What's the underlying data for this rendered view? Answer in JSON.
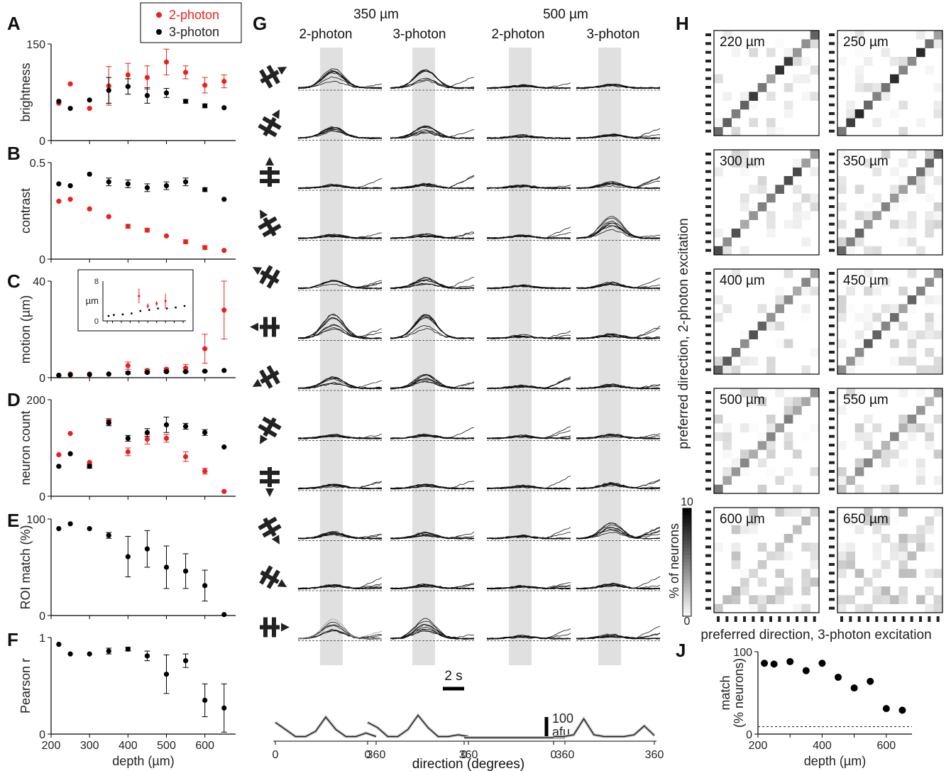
{
  "figure": {
    "panel_letters": [
      "A",
      "B",
      "C",
      "D",
      "E",
      "F",
      "G",
      "H",
      "J"
    ],
    "legend": [
      {
        "label": "2-photon",
        "color": "#e8231f"
      },
      {
        "label": "3-photon",
        "color": "#000000"
      }
    ],
    "colors": {
      "two_photon": "#e8231f",
      "three_photon": "#000000",
      "shade": "#e0e0e0"
    },
    "G": {
      "depth_headers": [
        "350 µm",
        "500 µm"
      ],
      "column_headers": [
        "2-photon",
        "3-photon",
        "2-photon",
        "3-photon"
      ],
      "time_scale_label": "2 s",
      "amp_scale_label": [
        "100",
        "afu"
      ],
      "tuning_xticks": [
        "0",
        "360"
      ],
      "tuning_xlabel": "direction (degrees)"
    },
    "H": {
      "depths": [
        "220 µm",
        "250 µm",
        "300 µm",
        "350 µm",
        "400 µm",
        "450 µm",
        "500 µm",
        "550 µm",
        "600 µm",
        "650 µm"
      ],
      "ylabel": "preferred direction, 2-photon excitation",
      "xlabel": "preferred direction, 3-photon excitation",
      "colorbar_label": "% of neurons",
      "colorbar_ticks": [
        "10",
        "0"
      ]
    }
  },
  "chart_data": [
    {
      "panel": "A",
      "type": "scatter",
      "xlabel": "",
      "ylabel": "brightness",
      "ylim": [
        0,
        150
      ],
      "yticks": [
        "0",
        "150"
      ],
      "x": [
        220,
        250,
        300,
        350,
        400,
        450,
        500,
        550,
        600,
        650
      ],
      "series": [
        {
          "name": "2-photon",
          "color": "#e8231f",
          "values": [
            58,
            88,
            50,
            85,
            102,
            98,
            122,
            106,
            86,
            92
          ],
          "err": [
            0,
            0,
            0,
            30,
            18,
            18,
            20,
            10,
            12,
            10
          ]
        },
        {
          "name": "3-photon",
          "color": "#000000",
          "values": [
            61,
            50,
            63,
            78,
            84,
            70,
            74,
            61,
            54,
            51
          ],
          "err": [
            0,
            0,
            0,
            20,
            12,
            12,
            7,
            3,
            3,
            0
          ]
        }
      ]
    },
    {
      "panel": "B",
      "type": "scatter",
      "xlabel": "",
      "ylabel": "contrast",
      "ylim": [
        0,
        0.5
      ],
      "yticks": [
        "0",
        "0.5"
      ],
      "x": [
        220,
        250,
        300,
        350,
        400,
        450,
        500,
        550,
        600,
        650
      ],
      "series": [
        {
          "name": "2-photon",
          "color": "#e8231f",
          "values": [
            0.3,
            0.31,
            0.26,
            0.22,
            0.17,
            0.15,
            0.12,
            0.09,
            0.06,
            0.045
          ],
          "err": [
            0,
            0,
            0,
            0,
            0.01,
            0.01,
            0,
            0.01,
            0.01,
            0
          ]
        },
        {
          "name": "3-photon",
          "color": "#000000",
          "values": [
            0.39,
            0.38,
            0.44,
            0.4,
            0.39,
            0.37,
            0.38,
            0.4,
            0.36,
            0.31
          ],
          "err": [
            0,
            0,
            0,
            0.02,
            0.02,
            0.02,
            0.02,
            0.02,
            0.01,
            0
          ]
        }
      ]
    },
    {
      "panel": "C",
      "type": "scatter",
      "xlabel": "",
      "ylabel": "motion (µm)",
      "ylim": [
        0,
        40
      ],
      "yticks": [
        "0",
        "40"
      ],
      "x": [
        220,
        250,
        300,
        350,
        400,
        450,
        500,
        550,
        600,
        650
      ],
      "series": [
        {
          "name": "2-photon",
          "color": "#e8231f",
          "values": [
            1,
            1.5,
            1.5,
            1.5,
            5,
            3,
            3.5,
            4,
            12,
            28
          ],
          "err": [
            0,
            0,
            0,
            0,
            1.5,
            0.5,
            0.5,
            1.5,
            6,
            12
          ]
        },
        {
          "name": "3-photon",
          "color": "#000000",
          "values": [
            1,
            1.2,
            1.3,
            1.5,
            2,
            2.2,
            2.5,
            2.5,
            2.7,
            3
          ],
          "err": [
            0,
            0,
            0,
            0,
            0.5,
            0.3,
            0.3,
            0.3,
            0.2,
            0
          ]
        }
      ],
      "inset": {
        "ylabel": "µm",
        "yticks": [
          "0",
          "8"
        ],
        "ylim": [
          0,
          8
        ],
        "red_values": [
          null,
          null,
          null,
          null,
          5,
          3,
          3.5,
          4,
          null,
          null
        ],
        "red_err": [
          0,
          0,
          0,
          0,
          1.5,
          0.5,
          0.5,
          1.5,
          0,
          0
        ],
        "black_values": [
          1,
          1.2,
          1.3,
          1.5,
          2,
          2.2,
          2.5,
          2.5,
          2.7,
          3
        ]
      }
    },
    {
      "panel": "D",
      "type": "scatter",
      "xlabel": "",
      "ylabel": "neuron count",
      "ylim": [
        0,
        200
      ],
      "yticks": [
        "0",
        "200"
      ],
      "x": [
        220,
        250,
        300,
        350,
        400,
        450,
        500,
        550,
        600,
        650
      ],
      "series": [
        {
          "name": "2-photon",
          "color": "#e8231f",
          "values": [
            86,
            130,
            70,
            155,
            92,
            118,
            120,
            82,
            52,
            10
          ],
          "err": [
            0,
            0,
            0,
            6,
            8,
            10,
            8,
            10,
            6,
            0
          ]
        },
        {
          "name": "3-photon",
          "color": "#000000",
          "values": [
            62,
            88,
            62,
            152,
            120,
            132,
            148,
            145,
            132,
            102
          ],
          "err": [
            0,
            0,
            4,
            6,
            6,
            8,
            16,
            6,
            6,
            0
          ]
        }
      ]
    },
    {
      "panel": "E",
      "type": "scatter",
      "xlabel": "",
      "ylabel": "ROI match (%)",
      "ylim": [
        0,
        100
      ],
      "yticks": [
        "0",
        "100"
      ],
      "x": [
        220,
        250,
        300,
        350,
        400,
        450,
        500,
        550,
        600,
        650
      ],
      "series": [
        {
          "name": "3-photon",
          "color": "#000000",
          "values": [
            90,
            95,
            90,
            83,
            61,
            69,
            50,
            46,
            31,
            1
          ],
          "err": [
            0,
            0,
            0,
            3,
            21,
            19,
            22,
            18,
            16,
            0
          ]
        }
      ]
    },
    {
      "panel": "F",
      "type": "scatter",
      "xlabel": "depth (µm)",
      "ylabel": "Pearson r",
      "ylim": [
        0,
        1
      ],
      "yticks": [
        "0",
        "1"
      ],
      "xticks": [
        "200",
        "300",
        "400",
        "500",
        "600"
      ],
      "x": [
        220,
        250,
        300,
        350,
        400,
        450,
        500,
        550,
        600,
        650
      ],
      "series": [
        {
          "name": "3-photon",
          "color": "#000000",
          "values": [
            0.93,
            0.83,
            0.83,
            0.86,
            0.88,
            0.81,
            0.62,
            0.76,
            0.35,
            0.27
          ],
          "err": [
            0,
            0,
            0,
            0.03,
            0.02,
            0.05,
            0.2,
            0.07,
            0.17,
            0.25
          ]
        }
      ]
    },
    {
      "panel": "J",
      "type": "scatter",
      "xlabel": "depth (µm)",
      "ylabel": "match (% neurons)",
      "ylim": [
        0,
        100
      ],
      "yticks": [
        "0",
        "100"
      ],
      "xticks": [
        "200",
        "400",
        "600"
      ],
      "reference_line": 9,
      "x": [
        220,
        250,
        300,
        350,
        400,
        450,
        500,
        550,
        600,
        650
      ],
      "series": [
        {
          "name": "",
          "color": "#000000",
          "values": [
            86,
            85,
            88,
            77,
            86,
            69,
            56,
            64,
            31,
            29
          ]
        }
      ]
    },
    {
      "panel": "G-tuning",
      "type": "line",
      "xlim": [
        0,
        360
      ],
      "series": [
        {
          "name": "350 µm 2-photon",
          "values": [
            0.45,
            0.25,
            0.05,
            0.05,
            0.2,
            0.6,
            0.25,
            0.05,
            0.05,
            0.15,
            0.05
          ]
        },
        {
          "name": "350 µm 3-photon",
          "values": [
            0.45,
            0.3,
            0.05,
            0.05,
            0.25,
            0.65,
            0.3,
            0.05,
            0.05,
            0.1,
            0.05
          ]
        },
        {
          "name": "500 µm 2-photon",
          "values": [
            0.02,
            0.02,
            0.02,
            0.02,
            0.02,
            0.02,
            0.02,
            0.02,
            0.02,
            0.02,
            0.02
          ]
        },
        {
          "name": "500 µm 3-photon",
          "values": [
            0.05,
            0.05,
            0.1,
            0.55,
            0.1,
            0.05,
            0.05,
            0.05,
            0.1,
            0.35,
            0.08
          ]
        }
      ]
    },
    {
      "panel": "H",
      "type": "heatmap",
      "diag_strength": [
        0.7,
        0.7,
        0.6,
        0.55,
        0.6,
        0.55,
        0.5,
        0.45,
        0.25,
        0.15
      ]
    }
  ]
}
